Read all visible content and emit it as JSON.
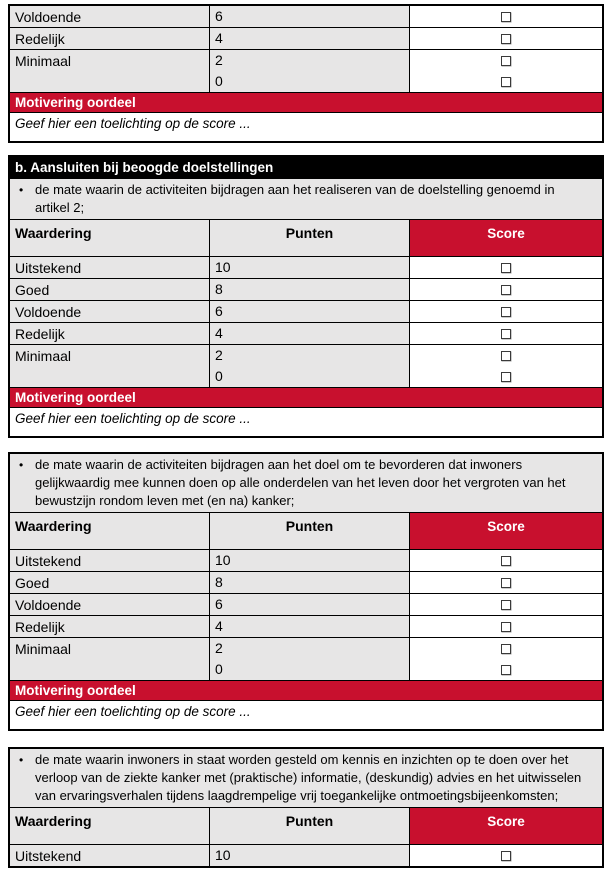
{
  "colors": {
    "accent_red": "#C8102E",
    "title_black": "#000000",
    "cell_gray": "#E7E6E6",
    "border": "#000000"
  },
  "shared": {
    "column_headers": {
      "waardering": "Waardering",
      "punten": "Punten",
      "score": "Score"
    },
    "motivering_label": "Motivering oordeel",
    "toelichting_placeholder": "Geef hier een toelichting op de score ..."
  },
  "tables": [
    {
      "name": "score-table-partial-top",
      "title": "",
      "bullets": [],
      "show_column_headers": false,
      "rows": [
        {
          "label": "Voldoende",
          "points": [
            "6"
          ]
        },
        {
          "label": "Redelijk",
          "points": [
            "4"
          ]
        },
        {
          "label": "Minimaal",
          "points": [
            "2",
            "0"
          ]
        }
      ],
      "motivering": true,
      "toelichting": true
    },
    {
      "name": "score-table-section-b",
      "title": "b. Aansluiten bij beoogde doelstellingen",
      "bullets": [
        "de mate waarin de activiteiten bijdragen aan het realiseren van de doelstelling genoemd in artikel 2;"
      ],
      "show_column_headers": true,
      "rows": [
        {
          "label": "Uitstekend",
          "points": [
            "10"
          ]
        },
        {
          "label": "Goed",
          "points": [
            "8"
          ]
        },
        {
          "label": "Voldoende",
          "points": [
            "6"
          ]
        },
        {
          "label": "Redelijk",
          "points": [
            "4"
          ]
        },
        {
          "label": "Minimaal",
          "points": [
            "2",
            "0"
          ]
        }
      ],
      "motivering": true,
      "toelichting": true
    },
    {
      "name": "score-table-criterion-meedoen",
      "title": "",
      "bullets": [
        "de mate waarin de activiteiten bijdragen aan het doel om te bevorderen dat inwoners gelijkwaardig mee kunnen doen op alle onderdelen van het leven door het vergroten van het bewustzijn rondom leven met (en na) kanker;"
      ],
      "show_column_headers": true,
      "rows": [
        {
          "label": "Uitstekend",
          "points": [
            "10"
          ]
        },
        {
          "label": "Goed",
          "points": [
            "8"
          ]
        },
        {
          "label": "Voldoende",
          "points": [
            "6"
          ]
        },
        {
          "label": "Redelijk",
          "points": [
            "4"
          ]
        },
        {
          "label": "Minimaal",
          "points": [
            "2",
            "0"
          ]
        }
      ],
      "motivering": true,
      "toelichting": true
    },
    {
      "name": "score-table-criterion-kennis",
      "title": "",
      "bullets": [
        "de mate waarin inwoners in staat worden gesteld om kennis en inzichten op te doen over het verloop van de ziekte kanker met (praktische) informatie, (deskundig) advies en het uitwisselen van ervaringsverhalen tijdens laagdrempelige vrij toegankelijke ontmoetingsbijeenkomsten;"
      ],
      "show_column_headers": true,
      "rows": [
        {
          "label": "Uitstekend",
          "points": [
            "10"
          ]
        }
      ],
      "motivering": false,
      "toelichting": false
    }
  ]
}
